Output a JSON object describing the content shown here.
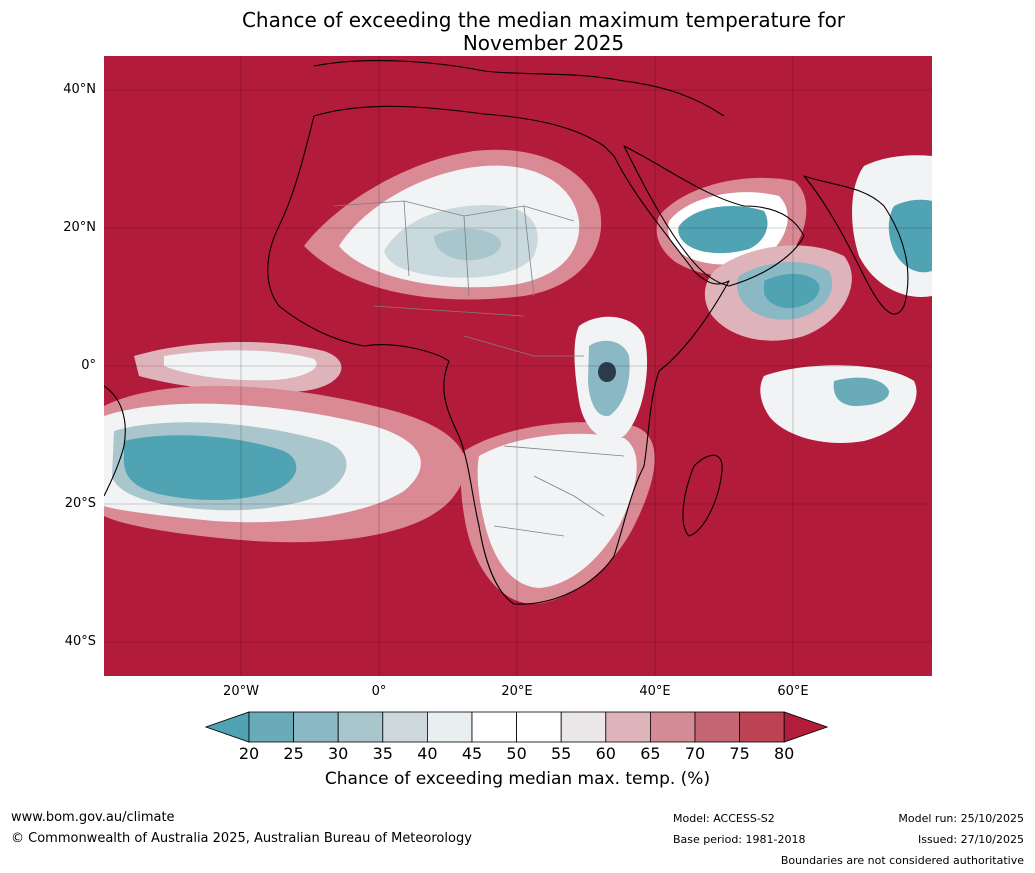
{
  "title": {
    "line1": "Chance of exceeding the median maximum temperature for",
    "line2": "November 2025"
  },
  "map": {
    "lat_labels": [
      "40°N",
      "20°N",
      "0°",
      "20°S",
      "40°S"
    ],
    "lon_labels": [
      "20°W",
      "0°",
      "20°E",
      "40°E",
      "60°E"
    ],
    "colors": {
      "ocean_default": "#b31b3a",
      "land_neutral": "#f2f3f5",
      "low_teal": "#3e9fb0",
      "mid_teal": "#9fc3cb",
      "pink": "#d98a95",
      "coast": "#000000",
      "borders": "#808080"
    }
  },
  "colorbar": {
    "ticks": [
      "20",
      "25",
      "30",
      "35",
      "40",
      "45",
      "50",
      "55",
      "60",
      "65",
      "70",
      "75",
      "80"
    ],
    "colors": [
      "#4fa3b3",
      "#6aabba",
      "#8ab8c4",
      "#a9c6cd",
      "#ced9dc",
      "#e9eef1",
      "#ffffff",
      "#ffffff",
      "#ebe6e8",
      "#dfb3ba",
      "#d38c96",
      "#c66674",
      "#bb4353",
      "#b11d3a"
    ],
    "label": "Chance of exceeding median max. temp. (%)"
  },
  "footer": {
    "url": "www.bom.gov.au/climate",
    "copyright": "© Commonwealth of Australia 2025, Australian Bureau of Meteorology",
    "model": "Model: ACCESS-S2",
    "base_period": "Base period: 1981-2018",
    "model_run": "Model run: 25/10/2025",
    "issued": "Issued: 27/10/2025",
    "disclaimer": "Boundaries are not considered authoritative"
  }
}
